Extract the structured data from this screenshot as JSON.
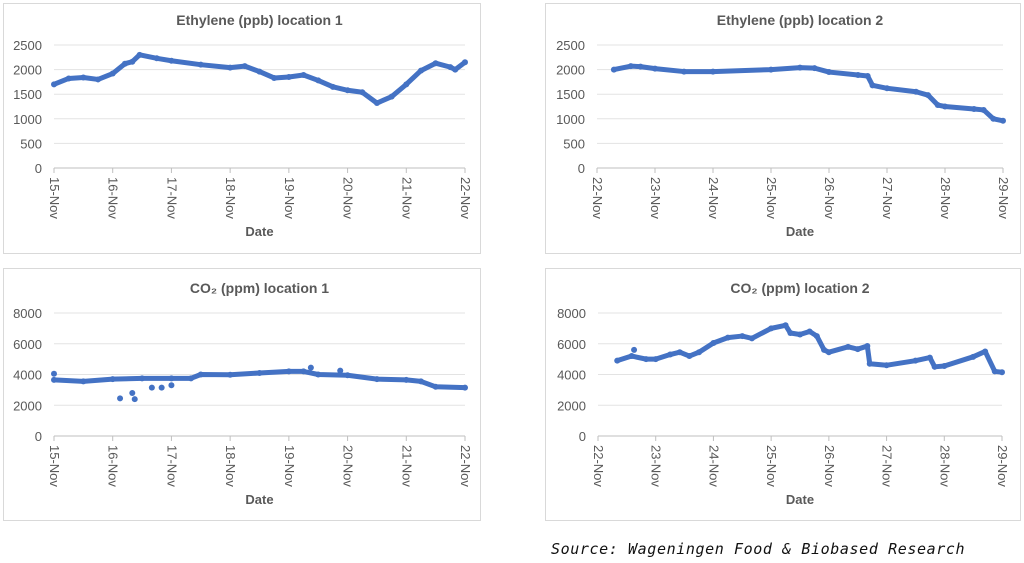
{
  "source": "Source: Wageningen Food & Biobased Research",
  "series_color": "#4472C4",
  "chart_data": [
    {
      "type": "scatter",
      "title": "Ethylene (ppb)  location 1",
      "xlabel": "Date",
      "ylabel": "",
      "grid": true,
      "ylim": [
        0,
        2500
      ],
      "yticks": [
        0,
        500,
        1000,
        1500,
        2000,
        2500
      ],
      "xticks": [
        "15-Nov",
        "16-Nov",
        "17-Nov",
        "18-Nov",
        "19-Nov",
        "20-Nov",
        "21-Nov",
        "22-Nov"
      ],
      "points": [
        [
          "15-Nov 00:00",
          1700
        ],
        [
          "15-Nov 06:00",
          1820
        ],
        [
          "15-Nov 12:00",
          1840
        ],
        [
          "15-Nov 18:00",
          1800
        ],
        [
          "16-Nov 00:00",
          1920
        ],
        [
          "16-Nov 05:00",
          2120
        ],
        [
          "16-Nov 08:00",
          2160
        ],
        [
          "16-Nov 11:00",
          2300
        ],
        [
          "16-Nov 18:00",
          2230
        ],
        [
          "17-Nov 00:00",
          2180
        ],
        [
          "17-Nov 12:00",
          2100
        ],
        [
          "18-Nov 00:00",
          2040
        ],
        [
          "18-Nov 06:00",
          2070
        ],
        [
          "18-Nov 12:00",
          1960
        ],
        [
          "18-Nov 18:00",
          1830
        ],
        [
          "19-Nov 00:00",
          1850
        ],
        [
          "19-Nov 06:00",
          1890
        ],
        [
          "19-Nov 12:00",
          1780
        ],
        [
          "19-Nov 18:00",
          1650
        ],
        [
          "20-Nov 00:00",
          1580
        ],
        [
          "20-Nov 06:00",
          1540
        ],
        [
          "20-Nov 12:00",
          1320
        ],
        [
          "20-Nov 18:00",
          1450
        ],
        [
          "21-Nov 00:00",
          1700
        ],
        [
          "21-Nov 06:00",
          1980
        ],
        [
          "21-Nov 12:00",
          2130
        ],
        [
          "21-Nov 18:00",
          2050
        ],
        [
          "21-Nov 20:00",
          2000
        ],
        [
          "22-Nov 00:00",
          2150
        ]
      ],
      "outliers": []
    },
    {
      "type": "scatter",
      "title": "Ethylene (ppb)  location 2",
      "xlabel": "Date",
      "ylabel": "",
      "grid": true,
      "ylim": [
        0,
        2500
      ],
      "yticks": [
        0,
        500,
        1000,
        1500,
        2000,
        2500
      ],
      "xticks": [
        "22-Nov",
        "23-Nov",
        "24-Nov",
        "25-Nov",
        "26-Nov",
        "27-Nov",
        "28-Nov",
        "29-Nov"
      ],
      "points": [
        [
          "22-Nov 07:00",
          2000
        ],
        [
          "22-Nov 14:00",
          2070
        ],
        [
          "22-Nov 18:00",
          2060
        ],
        [
          "23-Nov 00:00",
          2020
        ],
        [
          "23-Nov 12:00",
          1960
        ],
        [
          "24-Nov 00:00",
          1960
        ],
        [
          "25-Nov 00:00",
          2000
        ],
        [
          "25-Nov 12:00",
          2040
        ],
        [
          "25-Nov 18:00",
          2030
        ],
        [
          "26-Nov 00:00",
          1950
        ],
        [
          "26-Nov 12:00",
          1890
        ],
        [
          "26-Nov 16:00",
          1870
        ],
        [
          "26-Nov 18:00",
          1680
        ],
        [
          "27-Nov 00:00",
          1620
        ],
        [
          "27-Nov 12:00",
          1550
        ],
        [
          "27-Nov 17:00",
          1480
        ],
        [
          "27-Nov 21:00",
          1280
        ],
        [
          "28-Nov 00:00",
          1250
        ],
        [
          "28-Nov 12:00",
          1200
        ],
        [
          "28-Nov 16:00",
          1180
        ],
        [
          "28-Nov 20:00",
          1000
        ],
        [
          "29-Nov 00:00",
          960
        ]
      ],
      "outliers": []
    },
    {
      "type": "scatter",
      "title": "CO₂ (ppm) location 1",
      "xlabel": "Date",
      "ylabel": "",
      "grid": true,
      "ylim": [
        0,
        8000
      ],
      "yticks": [
        0,
        2000,
        4000,
        6000,
        8000
      ],
      "xticks": [
        "15-Nov",
        "16-Nov",
        "17-Nov",
        "18-Nov",
        "19-Nov",
        "20-Nov",
        "21-Nov",
        "22-Nov"
      ],
      "points": [
        [
          "15-Nov 00:00",
          3650
        ],
        [
          "15-Nov 12:00",
          3550
        ],
        [
          "16-Nov 00:00",
          3700
        ],
        [
          "16-Nov 12:00",
          3750
        ],
        [
          "17-Nov 00:00",
          3750
        ],
        [
          "17-Nov 08:00",
          3750
        ],
        [
          "17-Nov 12:00",
          4000
        ],
        [
          "18-Nov 00:00",
          3980
        ],
        [
          "18-Nov 12:00",
          4100
        ],
        [
          "19-Nov 00:00",
          4200
        ],
        [
          "19-Nov 06:00",
          4200
        ],
        [
          "19-Nov 12:00",
          4000
        ],
        [
          "20-Nov 00:00",
          3950
        ],
        [
          "20-Nov 12:00",
          3700
        ],
        [
          "21-Nov 00:00",
          3650
        ],
        [
          "21-Nov 06:00",
          3550
        ],
        [
          "21-Nov 12:00",
          3200
        ],
        [
          "22-Nov 00:00",
          3150
        ]
      ],
      "outliers": [
        [
          "15-Nov 00:00",
          4050
        ],
        [
          "16-Nov 03:00",
          2450
        ],
        [
          "16-Nov 08:00",
          2800
        ],
        [
          "16-Nov 09:00",
          2400
        ],
        [
          "16-Nov 16:00",
          3150
        ],
        [
          "16-Nov 20:00",
          3150
        ],
        [
          "17-Nov 00:00",
          3300
        ],
        [
          "19-Nov 09:00",
          4450
        ],
        [
          "19-Nov 21:00",
          4250
        ]
      ]
    },
    {
      "type": "scatter",
      "title": "CO₂ (ppm) location 2",
      "xlabel": "Date",
      "ylabel": "",
      "grid": true,
      "ylim": [
        0,
        8000
      ],
      "yticks": [
        0,
        2000,
        4000,
        6000,
        8000
      ],
      "xticks": [
        "22-Nov",
        "23-Nov",
        "24-Nov",
        "25-Nov",
        "26-Nov",
        "27-Nov",
        "28-Nov",
        "29-Nov"
      ],
      "points": [
        [
          "22-Nov 08:00",
          4900
        ],
        [
          "22-Nov 14:00",
          5200
        ],
        [
          "22-Nov 20:00",
          5000
        ],
        [
          "23-Nov 00:00",
          5000
        ],
        [
          "23-Nov 06:00",
          5300
        ],
        [
          "23-Nov 10:00",
          5450
        ],
        [
          "23-Nov 14:00",
          5200
        ],
        [
          "23-Nov 18:00",
          5450
        ],
        [
          "24-Nov 00:00",
          6050
        ],
        [
          "24-Nov 06:00",
          6400
        ],
        [
          "24-Nov 12:00",
          6500
        ],
        [
          "24-Nov 16:00",
          6350
        ],
        [
          "25-Nov 00:00",
          7000
        ],
        [
          "25-Nov 06:00",
          7200
        ],
        [
          "25-Nov 08:00",
          6700
        ],
        [
          "25-Nov 12:00",
          6600
        ],
        [
          "25-Nov 16:00",
          6800
        ],
        [
          "25-Nov 19:00",
          6500
        ],
        [
          "25-Nov 22:00",
          5600
        ],
        [
          "26-Nov 00:00",
          5450
        ],
        [
          "26-Nov 08:00",
          5800
        ],
        [
          "26-Nov 12:00",
          5650
        ],
        [
          "26-Nov 16:00",
          5850
        ],
        [
          "26-Nov 17:00",
          4700
        ],
        [
          "27-Nov 00:00",
          4600
        ],
        [
          "27-Nov 12:00",
          4900
        ],
        [
          "27-Nov 18:00",
          5100
        ],
        [
          "27-Nov 20:00",
          4500
        ],
        [
          "28-Nov 00:00",
          4550
        ],
        [
          "28-Nov 12:00",
          5150
        ],
        [
          "28-Nov 17:00",
          5500
        ],
        [
          "28-Nov 21:00",
          4200
        ],
        [
          "29-Nov 00:00",
          4150
        ]
      ],
      "outliers": [
        [
          "22-Nov 15:00",
          5600
        ]
      ]
    }
  ]
}
